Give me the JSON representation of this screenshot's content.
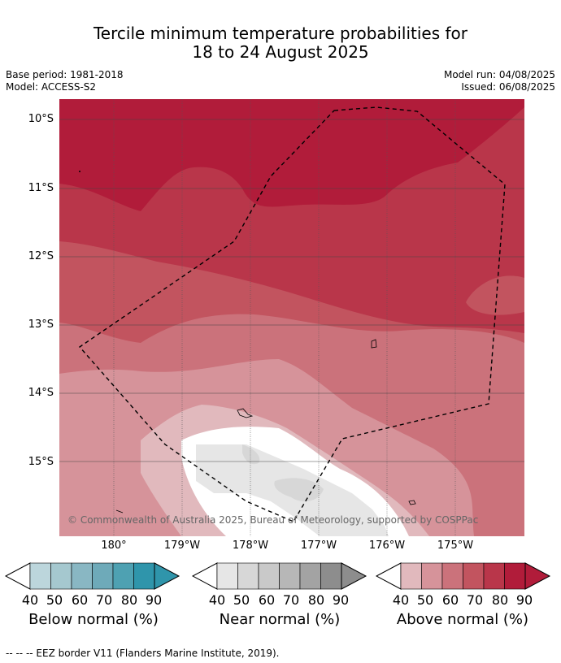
{
  "title_line1": "Tercile minimum temperature probabilities for",
  "title_line2": "18 to 24 August 2025",
  "meta": {
    "base_period": "Base period: 1981-2018",
    "model": "Model: ACCESS-S2",
    "model_run": "Model run: 04/08/2025",
    "issued": "Issued: 06/08/2025"
  },
  "latitude_labels": [
    "10°S",
    "11°S",
    "12°S",
    "13°S",
    "14°S",
    "15°S"
  ],
  "longitude_labels": [
    "180°",
    "179°W",
    "178°W",
    "177°W",
    "176°W",
    "175°W"
  ],
  "copyright": "© Commonwealth of Australia 2025, Bureau of Meteorology, supported by COSPPac",
  "colorbars": [
    {
      "label": "Below normal (%)",
      "ticks": [
        "40",
        "50",
        "60",
        "70",
        "80",
        "90"
      ],
      "colors": [
        "#bcd6dc",
        "#a5c8cf",
        "#89b7c3",
        "#6eaab9",
        "#4ea1b2",
        "#2f95ab"
      ]
    },
    {
      "label": "Near normal (%)",
      "ticks": [
        "40",
        "50",
        "60",
        "70",
        "80",
        "90"
      ],
      "colors": [
        "#e6e6e6",
        "#d7d7d7",
        "#c9c9c9",
        "#b7b7b7",
        "#a3a3a3",
        "#8d8d8d"
      ]
    },
    {
      "label": "Above normal (%)",
      "ticks": [
        "40",
        "50",
        "60",
        "70",
        "80",
        "90"
      ],
      "colors": [
        "#e1b9bd",
        "#d6939a",
        "#cb727b",
        "#c2545f",
        "#b9364a",
        "#b11c3a"
      ]
    }
  ],
  "footnote": "--  --  -- EEZ border V11 (Flanders Marine Institute, 2019)."
}
